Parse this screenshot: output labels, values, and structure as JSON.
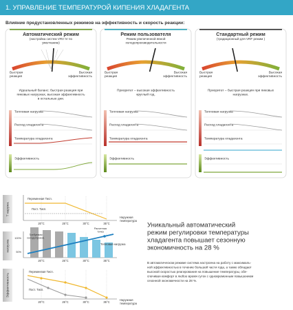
{
  "header": {
    "title": "1. УПРАВЛЕНИЕ ТЕМПЕРАТУРОЙ КИПЕНИЯ ХЛАДАГЕНТА"
  },
  "subtitle": "Влияние предустановленных режимов на эффективность и скорость реакции:",
  "row_labels": [
    "Тепловая нагрузка",
    "Расход хладагента",
    "Температура хладагента",
    "Эффективность"
  ],
  "panels": [
    {
      "title": "Автоматический режим",
      "subtitle_lines": [
        "(настройка систем VRV IV по",
        "умолчанию)"
      ],
      "fast_label": [
        "Быстрая",
        "реакция"
      ],
      "efficient_label": [
        "Высокая",
        "эффективность"
      ],
      "description_lines": [
        "Идеальный баланс: быстрая реакция при",
        "пиковых нагрузках, высокая эффективность",
        "в остальные дни."
      ]
    },
    {
      "title": "Режим пользователя",
      "subtitle_lines": [
        "Режим увеличенной явной",
        "холодопроизводительности"
      ],
      "fast_label": [
        "Быстрая",
        "реакция"
      ],
      "efficient_label": [
        "Высокая",
        "эффективность"
      ],
      "description_lines": [
        "Приоритет – высокая эффективность",
        "круглый год."
      ]
    },
    {
      "title": "Стандартный режим",
      "subtitle_lines": [
        "(традиционный для VRF режим )"
      ],
      "fast_label": [
        "Быстрая",
        "реакция"
      ],
      "efficient_label": [
        "Высокая",
        "эффективность"
      ],
      "description_lines": [
        "Приоритет – быстрая реакция при пиковых",
        "нагрузках."
      ]
    }
  ],
  "charts": [
    {
      "side_label": "Т наружн.",
      "labels": [
        "Переменная Тисп.",
        "Пост. Тисп."
      ],
      "axis_label_lines": [
        "Наружная",
        "температура"
      ],
      "x_labels": [
        "20°C",
        "25°C",
        "30°C",
        "35°C"
      ]
    },
    {
      "side_label": "нагрузка",
      "labels": [
        "Тепловая нагрузка"
      ],
      "required_lines": [
        "Требуемая",
        "холодопроизв."
      ],
      "point_lines": [
        "Расчетная",
        "точка"
      ],
      "y_labels": [
        "100%",
        "50%"
      ],
      "x_labels": [
        "20°C",
        "25°C",
        "30°C",
        "35°C"
      ]
    },
    {
      "side_label": "Эффективность",
      "labels": [
        "Переменная Тисп.",
        "Пост. Тисп."
      ],
      "axis_label_lines": [
        "Наружная",
        "температура"
      ],
      "x_labels": [
        "20°C",
        "25°C",
        "30°C",
        "35°C"
      ]
    }
  ],
  "summary": {
    "heading_lines": [
      "Уникальный автоматический",
      "режим регулировки температуры",
      "хладагента повышает сезонную",
      "экономичность на 28 %"
    ],
    "body_lines": [
      "В автоматическом режиме система настроена на работу с максималь-",
      "ной эффективностью в течение большей части года, а также обладает",
      "высокой скоростью реагирования на повышение температуры, обе-",
      "спечивая комфорт в любое время суток с одновременным повышением",
      "сезонной экономичности на 28 %."
    ]
  }
}
